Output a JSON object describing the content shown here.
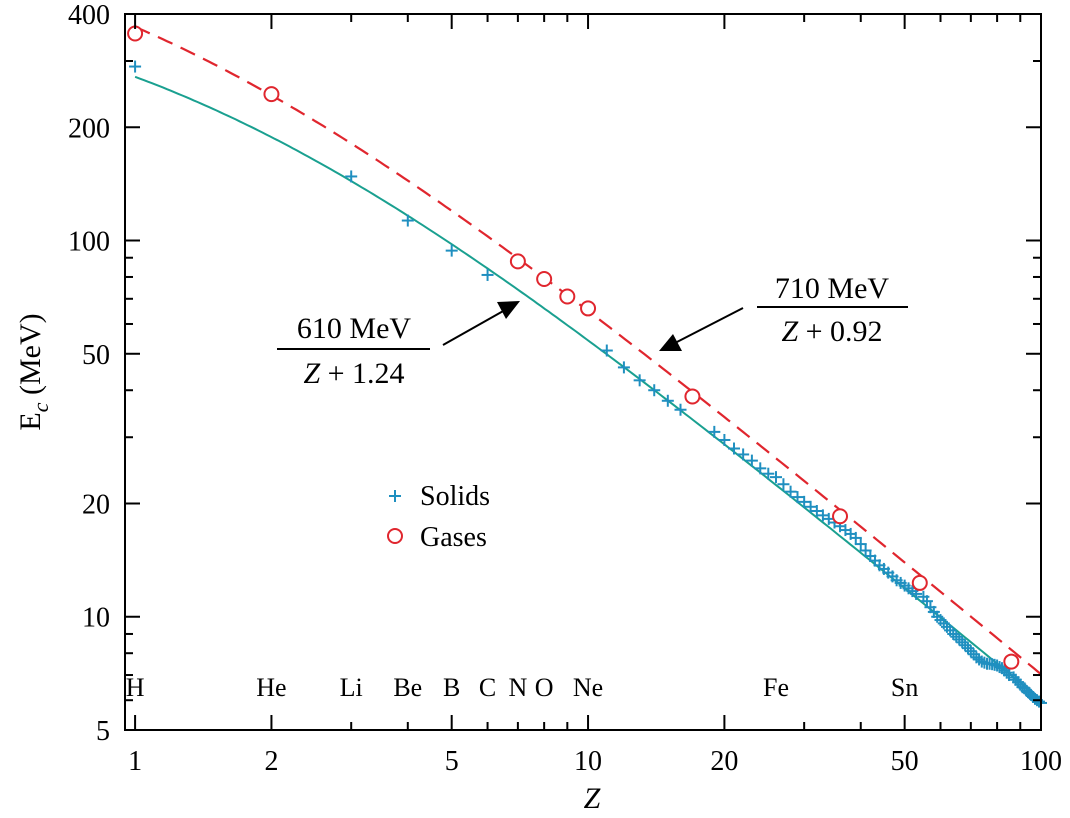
{
  "chart_data": {
    "type": "line",
    "xlabel": "Z",
    "ylabel_main": "E",
    "ylabel_sub": "c",
    "ylabel_rest": " (MeV)",
    "xscale": "log",
    "yscale": "log",
    "xlim": [
      0.95,
      100
    ],
    "ylim": [
      5,
      400
    ],
    "grid": false,
    "legend_position": "center-left",
    "x_ticks": [
      {
        "value": 1,
        "label": "1"
      },
      {
        "value": 2,
        "label": "2"
      },
      {
        "value": 5,
        "label": "5"
      },
      {
        "value": 10,
        "label": "10"
      },
      {
        "value": 20,
        "label": "20"
      },
      {
        "value": 50,
        "label": "50"
      },
      {
        "value": 100,
        "label": "100"
      }
    ],
    "y_ticks": [
      {
        "value": 5,
        "label": "5"
      },
      {
        "value": 10,
        "label": "10"
      },
      {
        "value": 20,
        "label": "20"
      },
      {
        "value": 50,
        "label": "50"
      },
      {
        "value": 100,
        "label": "100"
      },
      {
        "value": 200,
        "label": "200"
      },
      {
        "value": 400,
        "label": "400"
      }
    ],
    "element_labels": [
      {
        "z": 1,
        "label": "H"
      },
      {
        "z": 2,
        "label": "He"
      },
      {
        "z": 3,
        "label": "Li"
      },
      {
        "z": 4,
        "label": "Be"
      },
      {
        "z": 5,
        "label": "B"
      },
      {
        "z": 6,
        "label": "C"
      },
      {
        "z": 7,
        "label": "N"
      },
      {
        "z": 8,
        "label": "O"
      },
      {
        "z": 10,
        "label": "Ne"
      },
      {
        "z": 26,
        "label": "Fe"
      },
      {
        "z": 50,
        "label": "Sn"
      }
    ],
    "series": [
      {
        "name": "Solids",
        "marker": "plus",
        "color": "#1f8fc0",
        "points": [
          [
            1,
            290
          ],
          [
            3,
            148
          ],
          [
            4,
            113
          ],
          [
            5,
            94
          ],
          [
            6,
            81
          ],
          [
            11,
            51
          ],
          [
            12,
            46
          ],
          [
            13,
            42.5
          ],
          [
            14,
            40
          ],
          [
            15,
            37.5
          ],
          [
            16,
            35.5
          ],
          [
            19,
            31
          ],
          [
            20,
            29.5
          ],
          [
            21,
            28
          ],
          [
            22,
            27
          ],
          [
            23,
            26
          ],
          [
            24,
            24.8
          ],
          [
            25,
            24
          ],
          [
            26,
            23.5
          ],
          [
            27,
            22.5
          ],
          [
            28,
            21.5
          ],
          [
            29,
            20.8
          ],
          [
            30,
            20.2
          ],
          [
            31,
            19.6
          ],
          [
            32,
            19.1
          ],
          [
            33,
            18.6
          ],
          [
            34,
            18.2
          ],
          [
            35,
            17.8
          ],
          [
            36,
            17.4
          ],
          [
            37,
            17.0
          ],
          [
            38,
            16.6
          ],
          [
            39,
            16.2
          ],
          [
            40,
            15.6
          ],
          [
            41,
            15.0
          ],
          [
            42,
            14.5
          ],
          [
            43,
            14.1
          ],
          [
            44,
            13.7
          ],
          [
            45,
            13.4
          ],
          [
            46,
            13.1
          ],
          [
            47,
            12.8
          ],
          [
            48,
            12.5
          ],
          [
            49,
            12.3
          ],
          [
            50,
            12.1
          ],
          [
            51,
            11.9
          ],
          [
            52,
            11.7
          ],
          [
            53,
            11.5
          ],
          [
            55,
            11.3
          ],
          [
            56,
            11.0
          ],
          [
            57,
            10.6
          ],
          [
            58,
            10.3
          ],
          [
            59,
            10.0
          ],
          [
            60,
            9.8
          ],
          [
            61,
            9.6
          ],
          [
            62,
            9.4
          ],
          [
            63,
            9.2
          ],
          [
            64,
            9.0
          ],
          [
            65,
            8.85
          ],
          [
            66,
            8.7
          ],
          [
            67,
            8.55
          ],
          [
            68,
            8.4
          ],
          [
            69,
            8.25
          ],
          [
            70,
            8.1
          ],
          [
            71,
            7.95
          ],
          [
            72,
            7.8
          ],
          [
            73,
            7.7
          ],
          [
            74,
            7.6
          ],
          [
            75,
            7.55
          ],
          [
            76,
            7.5
          ],
          [
            77,
            7.5
          ],
          [
            78,
            7.48
          ],
          [
            79,
            7.45
          ],
          [
            80,
            7.42
          ],
          [
            81,
            7.35
          ],
          [
            82,
            7.3
          ],
          [
            83,
            7.2
          ],
          [
            84,
            7.1
          ],
          [
            85,
            7.0
          ],
          [
            87,
            6.9
          ],
          [
            88,
            6.8
          ],
          [
            89,
            6.7
          ],
          [
            90,
            6.6
          ],
          [
            91,
            6.5
          ],
          [
            92,
            6.45
          ],
          [
            93,
            6.35
          ],
          [
            94,
            6.28
          ],
          [
            95,
            6.2
          ],
          [
            96,
            6.12
          ],
          [
            97,
            6.05
          ],
          [
            98,
            6.0
          ],
          [
            99,
            5.95
          ],
          [
            100,
            5.9
          ]
        ]
      },
      {
        "name": "Gases",
        "marker": "circle",
        "color": "#e0262e",
        "points": [
          [
            1,
            355
          ],
          [
            2,
            245
          ],
          [
            7,
            88
          ],
          [
            8,
            79
          ],
          [
            9,
            71
          ],
          [
            10,
            66
          ],
          [
            17,
            38.5
          ],
          [
            36,
            18.5
          ],
          [
            54,
            12.3
          ],
          [
            86,
            7.6
          ]
        ]
      }
    ],
    "fits": [
      {
        "numerator": "610 MeV",
        "denominator": "Z + 1.24",
        "den_var": "Z",
        "den_rest": " + 1.24",
        "a": 610,
        "b": 1.24,
        "color": "#1aa090",
        "style": "solid"
      },
      {
        "numerator": "710 MeV",
        "denominator": "Z + 0.92",
        "den_var": "Z",
        "den_rest": " + 0.92",
        "a": 710,
        "b": 0.92,
        "color": "#e0262e",
        "style": "dashed"
      }
    ]
  }
}
